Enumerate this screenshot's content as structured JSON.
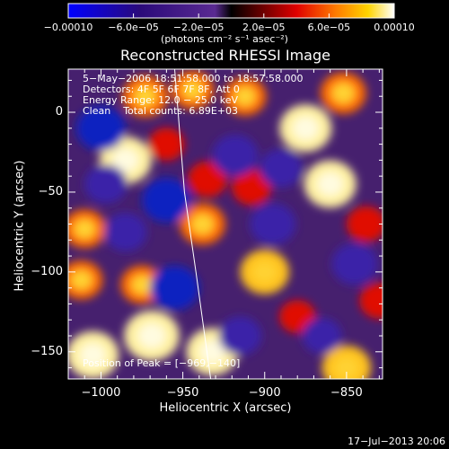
{
  "chart_data": {
    "type": "heatmap",
    "title": "Reconstructed RHESSI Image",
    "xlabel": "Heliocentric X (arcsec)",
    "ylabel": "Heliocentric Y (arcsec)",
    "xlim": [
      -1020,
      -828
    ],
    "ylim": [
      -167,
      27
    ],
    "x_ticks": [
      -1000,
      -950,
      -900,
      -850
    ],
    "x_tick_labels": [
      "−1000",
      "−950",
      "−900",
      "−850"
    ],
    "y_ticks": [
      0,
      -50,
      -100,
      -150
    ],
    "y_tick_labels": [
      "0",
      "−50",
      "−100",
      "−150"
    ],
    "colorbar": {
      "range": [
        -0.0001,
        0.0001
      ],
      "tick_values": [
        -0.0001,
        -6e-05,
        -2e-05,
        2e-05,
        6e-05,
        0.0001
      ],
      "tick_labels": [
        "−0.00010",
        "−6.0e−05",
        "−2.0e−05",
        "2.0e−05",
        "6.0e−05",
        "0.00010"
      ],
      "units": "(photons cm⁻² s⁻¹ asec⁻²)"
    },
    "annotations": [
      "5−May−2006 18:51:58.000 to 18:57:58.000",
      "Detectors: 4F 5F 6F 7F 8F, Att 0",
      "Energy Range: 12.0 − 25.0 keV",
      "Clean    Total counts: 6.89E+03"
    ],
    "peak_label": "Position of Peak = [−969,−140]",
    "peak": [
      -969,
      -140
    ],
    "limb_line": [
      [
        -955,
        27
      ],
      [
        -949,
        -50
      ],
      [
        -942,
        -100
      ],
      [
        -933,
        -167
      ]
    ],
    "blobs": [
      {
        "x": -985,
        "y": -30,
        "v": 9e-05
      },
      {
        "x": -973,
        "y": 10,
        "v": 7e-05
      },
      {
        "x": -960,
        "y": -20,
        "v": 4e-05
      },
      {
        "x": -944,
        "y": 14,
        "v": 6e-05
      },
      {
        "x": -935,
        "y": -42,
        "v": 5e-05
      },
      {
        "x": -938,
        "y": -70,
        "v": 7e-05
      },
      {
        "x": -912,
        "y": 10,
        "v": 6e-05
      },
      {
        "x": -875,
        "y": -10,
        "v": 9e-05
      },
      {
        "x": -852,
        "y": 12,
        "v": 7e-05
      },
      {
        "x": -908,
        "y": -47,
        "v": 5e-05
      },
      {
        "x": -860,
        "y": -45,
        "v": 9e-05
      },
      {
        "x": -838,
        "y": -70,
        "v": 5e-05
      },
      {
        "x": -1010,
        "y": -73,
        "v": 6e-05
      },
      {
        "x": -1012,
        "y": -105,
        "v": 6e-05
      },
      {
        "x": -975,
        "y": -108,
        "v": 6e-05
      },
      {
        "x": -900,
        "y": -100,
        "v": 8e-05
      },
      {
        "x": -880,
        "y": -128,
        "v": 4e-05
      },
      {
        "x": -830,
        "y": -118,
        "v": 5e-05
      },
      {
        "x": -1005,
        "y": -152,
        "v": 9e-05
      },
      {
        "x": -969,
        "y": -140,
        "v": 0.0001
      },
      {
        "x": -932,
        "y": -150,
        "v": 9e-05
      },
      {
        "x": -850,
        "y": -160,
        "v": 8e-05
      },
      {
        "x": -1000,
        "y": -10,
        "v": -8e-05
      },
      {
        "x": -960,
        "y": -55,
        "v": -8e-05
      },
      {
        "x": -997,
        "y": -45,
        "v": -6e-05
      },
      {
        "x": -955,
        "y": -110,
        "v": -8e-05
      },
      {
        "x": -918,
        "y": -27,
        "v": -7e-05
      },
      {
        "x": -895,
        "y": -70,
        "v": -7e-05
      },
      {
        "x": -845,
        "y": -95,
        "v": -7e-05
      },
      {
        "x": -915,
        "y": -140,
        "v": -6e-05
      },
      {
        "x": -985,
        "y": -75,
        "v": -6e-05
      },
      {
        "x": -890,
        "y": -35,
        "v": -6e-05
      },
      {
        "x": -865,
        "y": -140,
        "v": -5e-05
      }
    ]
  },
  "timestamp": "17−Jul−2013 20:06"
}
